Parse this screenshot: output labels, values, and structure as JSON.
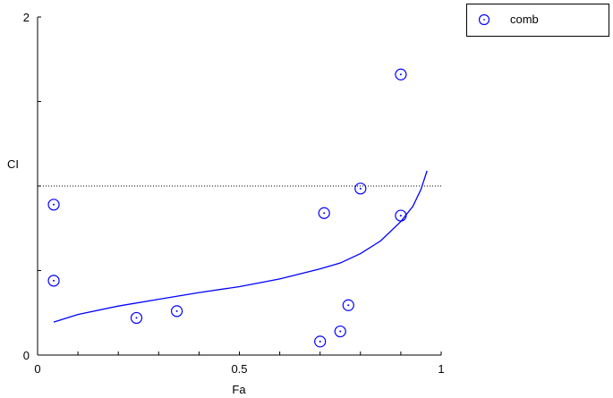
{
  "chart_data": {
    "type": "scatter",
    "xlabel": "Fa",
    "ylabel": "CI",
    "xlim": [
      0,
      1
    ],
    "ylim": [
      0,
      2
    ],
    "x_ticks": [
      "0",
      "0.5",
      "1"
    ],
    "y_ticks": [
      "0",
      "2"
    ],
    "grid": false,
    "legend_position": "outside-top-right",
    "reference_line": {
      "y": 1,
      "style": "dotted",
      "color": "#000000"
    },
    "series": [
      {
        "name": "comb",
        "marker": "circle-dot",
        "color": "#0000ff",
        "points": [
          {
            "x": 0.04,
            "y": 0.89
          },
          {
            "x": 0.04,
            "y": 0.44
          },
          {
            "x": 0.245,
            "y": 0.22
          },
          {
            "x": 0.345,
            "y": 0.26
          },
          {
            "x": 0.7,
            "y": 0.08
          },
          {
            "x": 0.75,
            "y": 0.14
          },
          {
            "x": 0.77,
            "y": 0.295
          },
          {
            "x": 0.71,
            "y": 0.84
          },
          {
            "x": 0.8,
            "y": 0.985
          },
          {
            "x": 0.9,
            "y": 0.825
          },
          {
            "x": 0.9,
            "y": 1.66
          }
        ]
      }
    ],
    "fit_curve": {
      "color": "#0000ff",
      "points": [
        {
          "x": 0.04,
          "y": 0.195
        },
        {
          "x": 0.1,
          "y": 0.24
        },
        {
          "x": 0.2,
          "y": 0.29
        },
        {
          "x": 0.3,
          "y": 0.33
        },
        {
          "x": 0.4,
          "y": 0.37
        },
        {
          "x": 0.5,
          "y": 0.405
        },
        {
          "x": 0.6,
          "y": 0.45
        },
        {
          "x": 0.7,
          "y": 0.51
        },
        {
          "x": 0.75,
          "y": 0.545
        },
        {
          "x": 0.8,
          "y": 0.6
        },
        {
          "x": 0.85,
          "y": 0.675
        },
        {
          "x": 0.9,
          "y": 0.79
        },
        {
          "x": 0.93,
          "y": 0.88
        },
        {
          "x": 0.95,
          "y": 0.98
        },
        {
          "x": 0.965,
          "y": 1.09
        }
      ]
    }
  }
}
